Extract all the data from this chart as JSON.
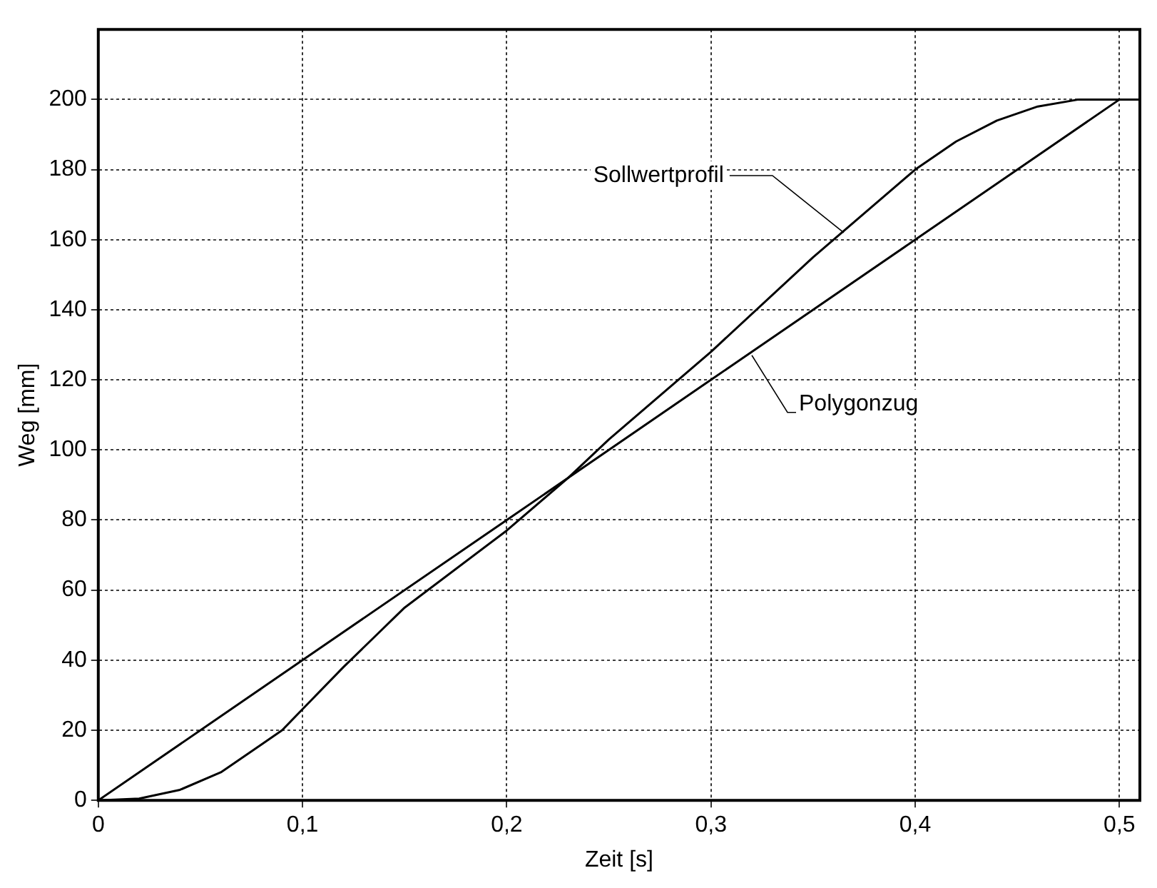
{
  "chart_data": {
    "type": "line",
    "xlabel": "Zeit [s]",
    "ylabel": "Weg [mm]",
    "xlim": [
      0,
      0.51
    ],
    "ylim": [
      0,
      220
    ],
    "xticks": [
      0,
      {
        "value": 0.1,
        "label": "0,1"
      },
      {
        "value": 0.2,
        "label": "0,2"
      },
      {
        "value": 0.3,
        "label": "0,3"
      },
      {
        "value": 0.4,
        "label": "0,4"
      },
      {
        "value": 0.5,
        "label": "0,5"
      }
    ],
    "yticks": [
      0,
      20,
      40,
      60,
      80,
      100,
      120,
      140,
      160,
      180,
      200
    ],
    "grid": true,
    "legend": false,
    "marker": "none",
    "line_style": "solid",
    "series": [
      {
        "color": "#000000",
        "x": [
          0,
          0.02,
          0.04,
          0.06,
          0.08,
          0.09,
          0.1,
          0.12,
          0.15,
          0.2,
          0.23,
          0.25,
          0.3,
          0.35,
          0.4,
          0.42,
          0.44,
          0.46,
          0.48,
          0.51
        ],
        "values": [
          0,
          0.5,
          3,
          8,
          16,
          20,
          26,
          38,
          55,
          77,
          92,
          103,
          128,
          155,
          180,
          188,
          194,
          198,
          200,
          200
        ]
      },
      {
        "color": "#000000",
        "x": [
          0,
          0.1,
          0.2,
          0.3,
          0.4,
          0.5,
          0.51
        ],
        "values": [
          0,
          40,
          80,
          120,
          160,
          200,
          200
        ]
      }
    ],
    "annotations": [
      {
        "text": "Sollwertprofil",
        "x": 0.365,
        "y": 162
      },
      {
        "text": "Polygonzug",
        "x": 0.32,
        "y": 127
      }
    ]
  }
}
